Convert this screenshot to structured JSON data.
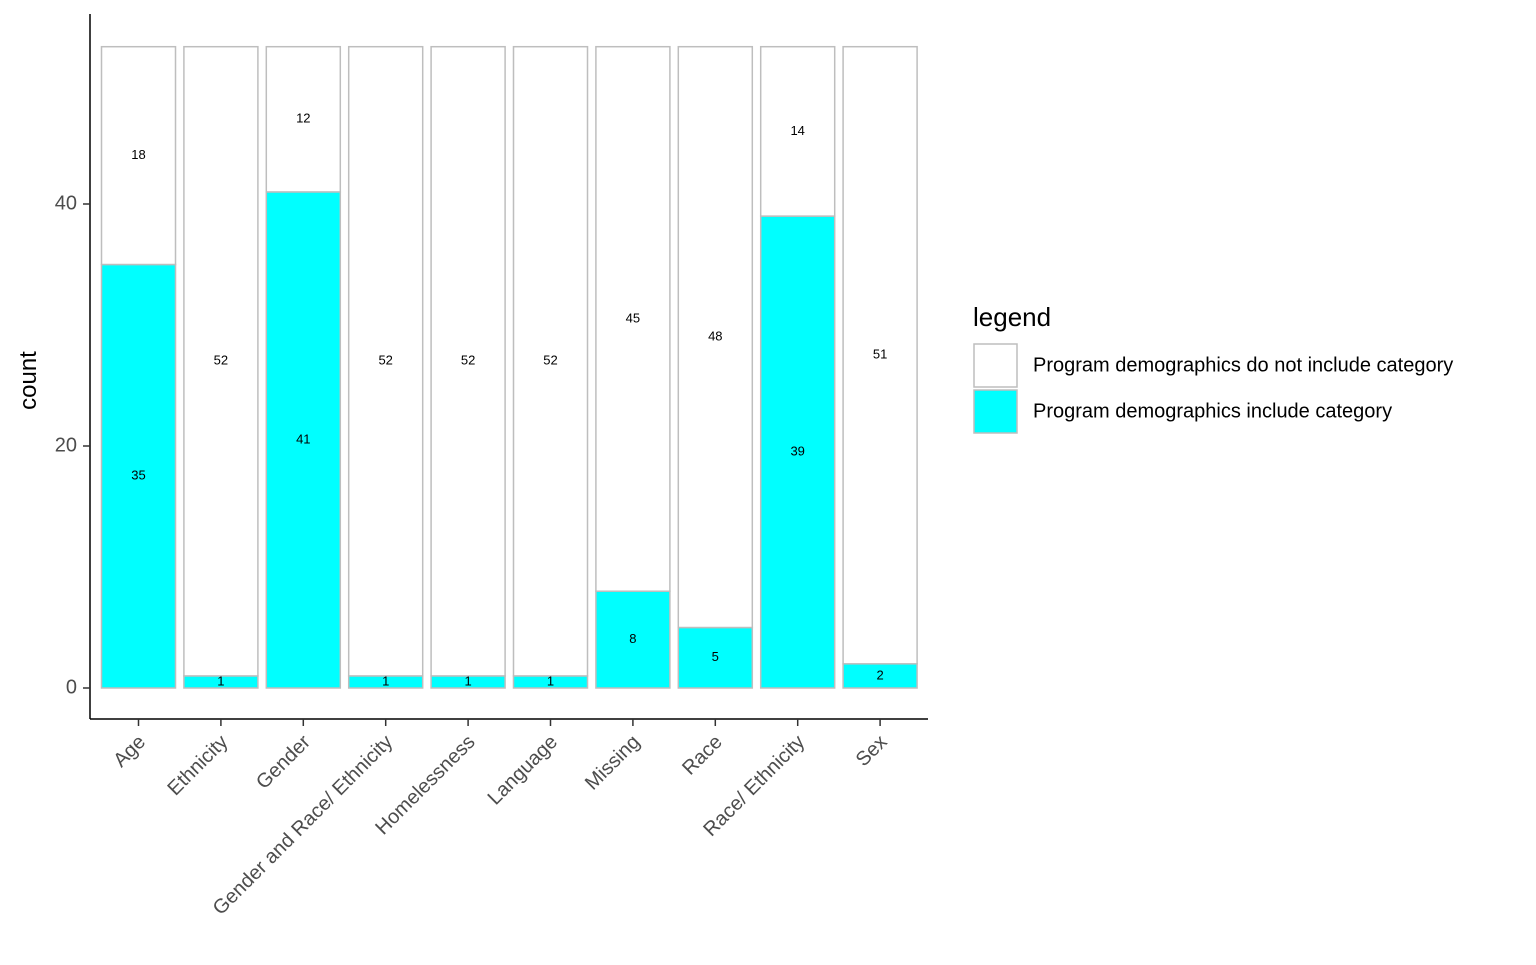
{
  "chart_data": {
    "type": "bar",
    "stacked": true,
    "title": "",
    "xlabel": "",
    "ylabel": "count",
    "ylim": [
      0,
      55
    ],
    "yticks": [
      0,
      20,
      40
    ],
    "grid": false,
    "legend_position": "right",
    "legend_title": "legend",
    "categories": [
      "Age",
      "Ethnicity",
      "Gender",
      "Gender and Race/ Ethnicity",
      "Homelessness",
      "Language",
      "Missing",
      "Race",
      "Race/ Ethnicity",
      "Sex"
    ],
    "series": [
      {
        "name": "Program demographics include category",
        "color": "#00ffff",
        "values": [
          35,
          1,
          41,
          1,
          1,
          1,
          8,
          5,
          39,
          2
        ]
      },
      {
        "name": "Program demographics do not include category",
        "color": "#ffffff",
        "values": [
          18,
          52,
          12,
          52,
          52,
          52,
          45,
          48,
          14,
          51
        ]
      }
    ],
    "legend_order": [
      1,
      0
    ],
    "bar_outline_color": "#bebebe"
  }
}
